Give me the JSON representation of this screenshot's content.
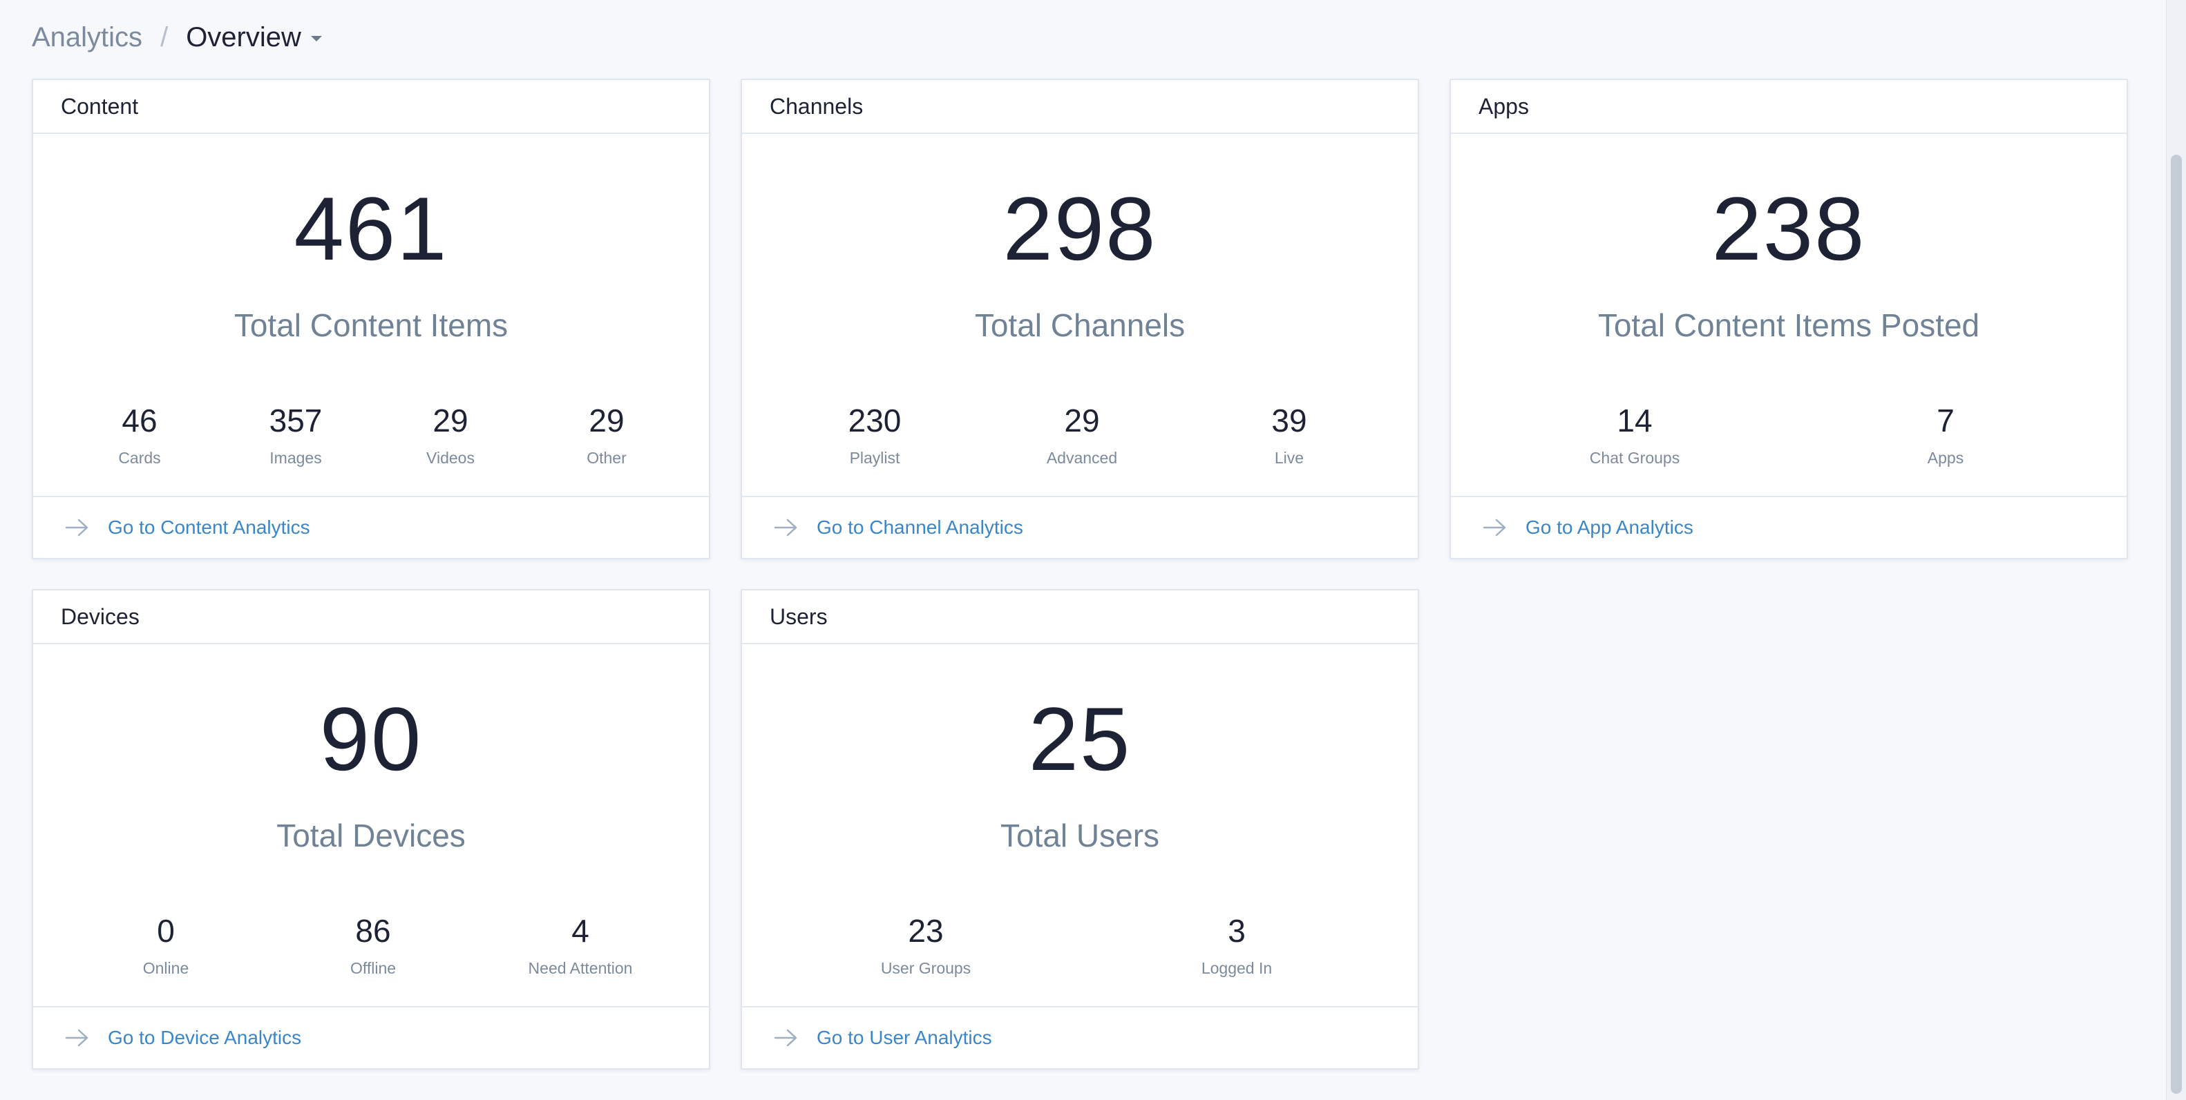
{
  "breadcrumb": {
    "root": "Analytics",
    "separator": "/",
    "current": "Overview"
  },
  "cards": {
    "content": {
      "title": "Content",
      "total": "461",
      "total_label": "Total Content Items",
      "stats": [
        {
          "value": "46",
          "label": "Cards"
        },
        {
          "value": "357",
          "label": "Images"
        },
        {
          "value": "29",
          "label": "Videos"
        },
        {
          "value": "29",
          "label": "Other"
        }
      ],
      "link": "Go to Content Analytics"
    },
    "channels": {
      "title": "Channels",
      "total": "298",
      "total_label": "Total Channels",
      "stats": [
        {
          "value": "230",
          "label": "Playlist"
        },
        {
          "value": "29",
          "label": "Advanced"
        },
        {
          "value": "39",
          "label": "Live"
        }
      ],
      "link": "Go to Channel Analytics"
    },
    "apps": {
      "title": "Apps",
      "total": "238",
      "total_label": "Total Content Items Posted",
      "stats": [
        {
          "value": "14",
          "label": "Chat Groups"
        },
        {
          "value": "7",
          "label": "Apps"
        }
      ],
      "link": "Go to App Analytics"
    },
    "devices": {
      "title": "Devices",
      "total": "90",
      "total_label": "Total Devices",
      "stats": [
        {
          "value": "0",
          "label": "Online"
        },
        {
          "value": "86",
          "label": "Offline"
        },
        {
          "value": "4",
          "label": "Need Attention"
        }
      ],
      "link": "Go to Device Analytics"
    },
    "users": {
      "title": "Users",
      "total": "25",
      "total_label": "Total Users",
      "stats": [
        {
          "value": "23",
          "label": "User Groups"
        },
        {
          "value": "3",
          "label": "Logged In"
        }
      ],
      "link": "Go to User Analytics"
    }
  },
  "colors": {
    "background": "#f6f8fb",
    "link": "#3a86c8",
    "muted": "#708296",
    "number": "#1e2235"
  },
  "icons": {
    "breadcrumb_dropdown": "caret-down-icon",
    "footer_link": "arrow-right-icon"
  }
}
